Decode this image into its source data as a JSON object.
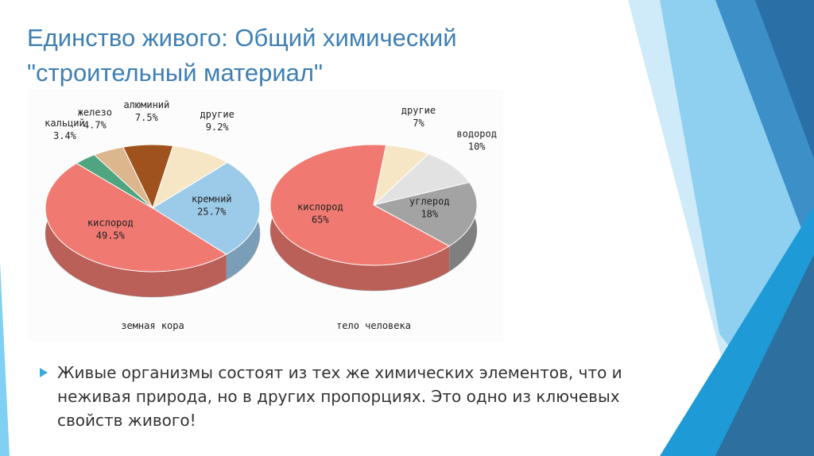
{
  "slide": {
    "title_lines": [
      "Единство живого: Общий химический",
      "\"строительный материал\""
    ],
    "bullet": "Живые организмы состоят из тех же химических элементов, что и неживая природа, но в других пропорциях. Это одно из ключевых свойств живого!"
  },
  "chart_data": [
    {
      "type": "pie",
      "caption": "земная кора",
      "categories": [
        "алюминий",
        "другие",
        "кремний",
        "кислород",
        "кальций",
        "железо"
      ],
      "values": [
        7.5,
        9.2,
        25.7,
        49.5,
        3.4,
        4.7
      ],
      "value_labels": [
        "7.5%",
        "9.2%",
        "25.7%",
        "49.5%",
        "3.4%",
        "4.7%"
      ],
      "colors": [
        "#a0521e",
        "#f7e6c6",
        "#9ccbea",
        "#f07a72",
        "#4fa57f",
        "#dcb68c"
      ]
    },
    {
      "type": "pie",
      "caption": "тело человека",
      "categories": [
        "другие",
        "водород",
        "углерод",
        "кислород"
      ],
      "values": [
        7,
        10,
        18,
        65
      ],
      "value_labels": [
        "7%",
        "10%",
        "18%",
        "65%"
      ],
      "colors": [
        "#f7e6c6",
        "#e2e2e2",
        "#a3a3a3",
        "#f07a72"
      ]
    }
  ]
}
